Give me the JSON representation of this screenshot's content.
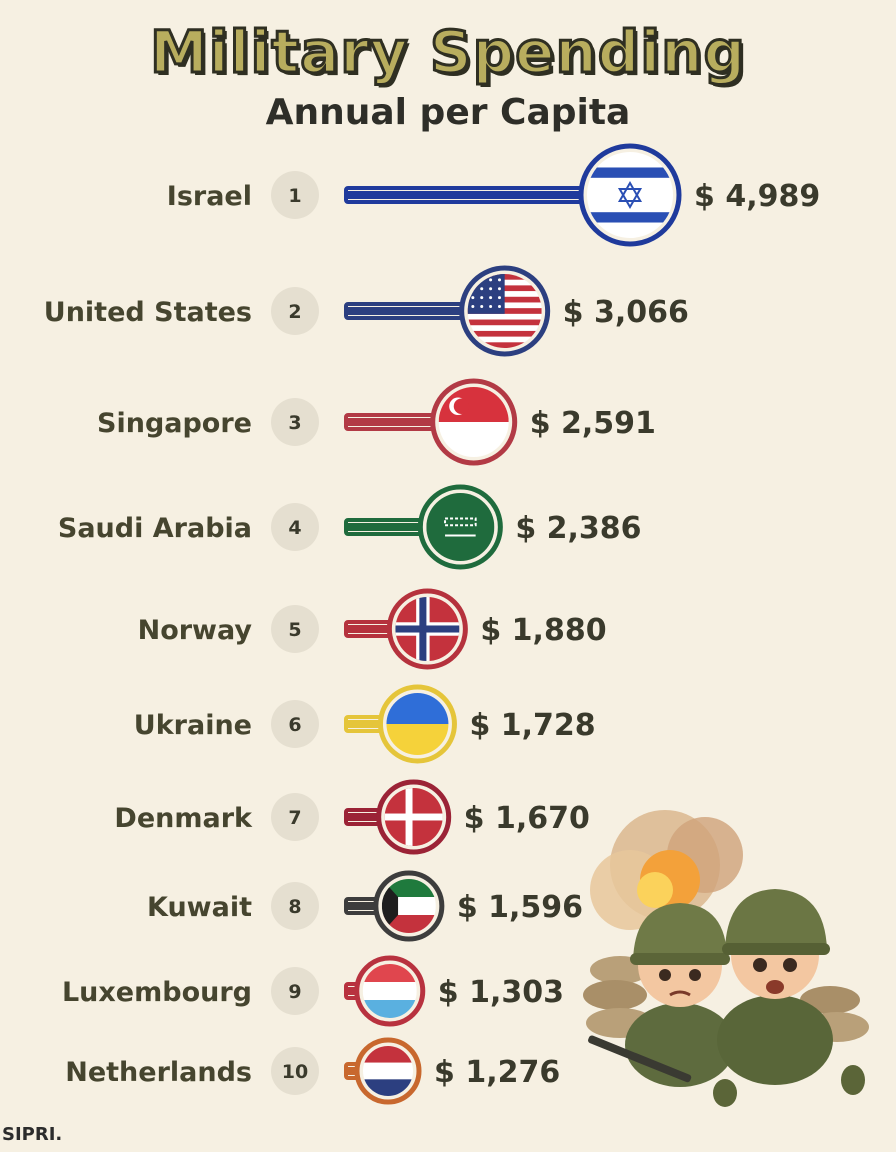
{
  "title": "Military Spending",
  "subtitle": "Annual per Capita",
  "source": "SIPRI.",
  "chart_data": {
    "type": "bar",
    "orientation": "horizontal",
    "title": "Military Spending",
    "subtitle": "Annual per Capita",
    "unit": "$",
    "categories": [
      "Israel",
      "United States",
      "Singapore",
      "Saudi Arabia",
      "Norway",
      "Ukraine",
      "Denmark",
      "Kuwait",
      "Luxembourg",
      "Netherlands"
    ],
    "ranks": [
      "1",
      "2",
      "3",
      "4",
      "5",
      "6",
      "7",
      "8",
      "9",
      "10"
    ],
    "values": [
      4989,
      3066,
      2591,
      2386,
      1880,
      1728,
      1670,
      1596,
      1303,
      1276
    ],
    "value_labels": [
      "$ 4,989",
      "$ 3,066",
      "$ 2,591",
      "$ 2,386",
      "$ 1,880",
      "$ 1,728",
      "$ 1,670",
      "$ 1,596",
      "$ 1,303",
      "$ 1,276"
    ],
    "bar_colors": [
      "#1f3a9c",
      "#2c3f80",
      "#b23a45",
      "#1f6b3d",
      "#b5323d",
      "#e5c53a",
      "#9b2336",
      "#3d3d3d",
      "#b8323f",
      "#c8682e"
    ],
    "flags": [
      "israel-flag",
      "usa-flag",
      "singapore-flag",
      "saudi-arabia-flag",
      "norway-flag",
      "ukraine-flag",
      "denmark-flag",
      "kuwait-flag",
      "luxembourg-flag",
      "netherlands-flag"
    ],
    "grid": false,
    "legend": "none"
  }
}
